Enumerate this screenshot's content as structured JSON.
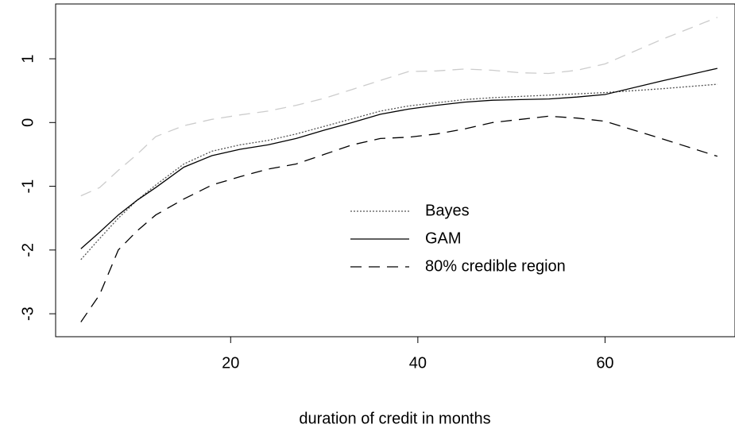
{
  "chart_data": {
    "type": "line",
    "x_label": "duration of credit in months",
    "x": [
      4,
      6,
      8,
      10,
      12,
      15,
      18,
      21,
      24,
      27,
      30,
      33,
      36,
      39,
      42,
      45,
      48,
      51,
      54,
      57,
      60,
      66,
      72
    ],
    "series": [
      {
        "name": "Bayes",
        "color": "#555555",
        "dash": "2,2",
        "values": [
          -2.15,
          -1.82,
          -1.5,
          -1.22,
          -0.98,
          -0.65,
          -0.45,
          -0.35,
          -0.28,
          -0.18,
          -0.06,
          0.06,
          0.18,
          0.26,
          0.31,
          0.36,
          0.39,
          0.41,
          0.43,
          0.45,
          0.47,
          0.53,
          0.6
        ]
      },
      {
        "name": "GAM",
        "color": "#000000",
        "dash": "none",
        "values": [
          -1.98,
          -1.72,
          -1.45,
          -1.22,
          -1.02,
          -0.7,
          -0.52,
          -0.42,
          -0.35,
          -0.25,
          -0.12,
          0.0,
          0.13,
          0.21,
          0.27,
          0.32,
          0.35,
          0.36,
          0.37,
          0.4,
          0.44,
          0.65,
          0.85
        ]
      },
      {
        "name": "80% credible region",
        "color": "#000000",
        "upper_color": "#cccccc",
        "dash": "14,9",
        "values": [
          -3.13,
          -2.7,
          -2.0,
          -1.7,
          -1.45,
          -1.2,
          -0.98,
          -0.85,
          -0.73,
          -0.65,
          -0.5,
          -0.35,
          -0.25,
          -0.23,
          -0.18,
          -0.1,
          0.0,
          0.05,
          0.1,
          0.07,
          0.02,
          -0.25,
          -0.53
        ],
        "upper": [
          -1.15,
          -1.02,
          -0.75,
          -0.5,
          -0.22,
          -0.05,
          0.05,
          0.12,
          0.18,
          0.27,
          0.38,
          0.52,
          0.66,
          0.8,
          0.81,
          0.84,
          0.82,
          0.78,
          0.77,
          0.82,
          0.92,
          1.3,
          1.65
        ]
      }
    ],
    "xlim": [
      1.3,
      73.8
    ],
    "xticks": [
      20,
      40,
      60
    ],
    "ylim": [
      -3.36,
      1.86
    ],
    "yticks": [
      -3,
      -2,
      -1,
      0,
      1
    ]
  }
}
